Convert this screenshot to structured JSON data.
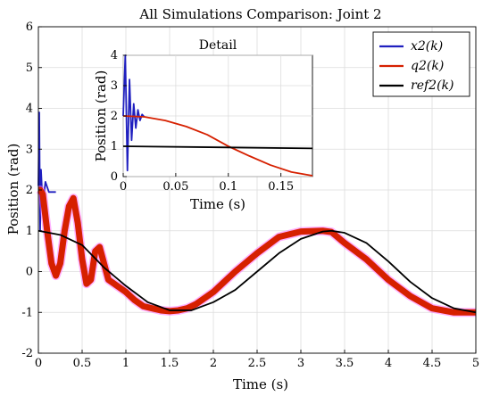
{
  "chart_data": [
    {
      "type": "line",
      "title": "All Simulations Comparison: Joint 2",
      "xlabel": "Time (s)",
      "ylabel": "Position (rad)",
      "xlim": [
        0,
        5
      ],
      "ylim": [
        -2,
        6
      ],
      "xticks": [
        0,
        0.5,
        1,
        1.5,
        2,
        2.5,
        3,
        3.5,
        4,
        4.5,
        5
      ],
      "yticks": [
        -2,
        -1,
        0,
        1,
        2,
        3,
        4,
        5,
        6
      ],
      "grid": true,
      "legend_placement": "top-right",
      "series": [
        {
          "name": "x2(k)",
          "color": "#1f1fbf",
          "x": [
            0,
            0.01,
            0.02,
            0.03,
            0.05,
            0.08,
            0.12,
            0.2
          ],
          "y": [
            2.1,
            3.9,
            1.0,
            2.5,
            1.6,
            2.2,
            1.95,
            1.95
          ]
        },
        {
          "name": "q2(k)",
          "color": "#d62000",
          "x": [
            0,
            0.02,
            0.05,
            0.1,
            0.15,
            0.2,
            0.25,
            0.3,
            0.35,
            0.4,
            0.45,
            0.5,
            0.55,
            0.6,
            0.65,
            0.7,
            0.75,
            0.8,
            0.9,
            1.0,
            1.1,
            1.2,
            1.3,
            1.4,
            1.5,
            1.6,
            1.7,
            1.8,
            2.0,
            2.25,
            2.5,
            2.75,
            3.0,
            3.25,
            3.35,
            3.5,
            3.75,
            4.0,
            4.25,
            4.5,
            4.75,
            5.0
          ],
          "y": [
            2.0,
            2.0,
            1.9,
            1.0,
            0.2,
            -0.1,
            0.2,
            1.0,
            1.6,
            1.8,
            1.2,
            0.3,
            -0.3,
            -0.2,
            0.5,
            0.6,
            0.2,
            -0.2,
            -0.35,
            -0.5,
            -0.7,
            -0.85,
            -0.9,
            -0.95,
            -0.97,
            -0.95,
            -0.9,
            -0.8,
            -0.5,
            0.0,
            0.45,
            0.85,
            0.98,
            1.0,
            0.97,
            0.7,
            0.3,
            -0.2,
            -0.6,
            -0.9,
            -1.0,
            -1.0
          ]
        },
        {
          "name": "ref2(k)",
          "color": "#000000",
          "x": [
            0,
            0.25,
            0.5,
            0.75,
            1.0,
            1.25,
            1.5,
            1.75,
            2.0,
            2.25,
            2.5,
            2.75,
            3.0,
            3.25,
            3.35,
            3.5,
            3.75,
            4.0,
            4.25,
            4.5,
            4.75,
            5.0
          ],
          "y": [
            1.0,
            0.9,
            0.65,
            0.1,
            -0.35,
            -0.75,
            -0.95,
            -0.95,
            -0.75,
            -0.45,
            0.0,
            0.45,
            0.8,
            0.98,
            1.0,
            0.95,
            0.7,
            0.25,
            -0.25,
            -0.65,
            -0.9,
            -1.0
          ]
        }
      ],
      "legend": [
        "x2(k)",
        "q2(k)",
        "ref2(k)"
      ]
    },
    {
      "type": "line",
      "title": "Detail",
      "xlabel": "Time (s)",
      "ylabel": "Position (rad)",
      "xlim": [
        0,
        0.18
      ],
      "ylim": [
        0,
        4
      ],
      "xticks": [
        0,
        0.05,
        0.1,
        0.15
      ],
      "yticks": [
        0,
        1,
        2,
        3,
        4
      ],
      "grid": true,
      "series": [
        {
          "name": "x2(k)",
          "color": "#1f1fbf",
          "x": [
            0,
            0.002,
            0.004,
            0.006,
            0.008,
            0.01,
            0.012,
            0.014,
            0.016,
            0.018,
            0.02
          ],
          "y": [
            2.0,
            4.0,
            0.2,
            3.2,
            1.2,
            2.4,
            1.6,
            2.2,
            1.85,
            2.05,
            1.97
          ]
        },
        {
          "name": "q2(k)",
          "color": "#d62000",
          "x": [
            0,
            0.02,
            0.04,
            0.06,
            0.08,
            0.1,
            0.12,
            0.14,
            0.16,
            0.18
          ],
          "y": [
            2.0,
            1.97,
            1.85,
            1.65,
            1.38,
            1.0,
            0.68,
            0.38,
            0.15,
            0.03
          ]
        },
        {
          "name": "ref2(k)",
          "color": "#000000",
          "x": [
            0,
            0.18
          ],
          "y": [
            1.0,
            0.93
          ]
        }
      ]
    }
  ]
}
